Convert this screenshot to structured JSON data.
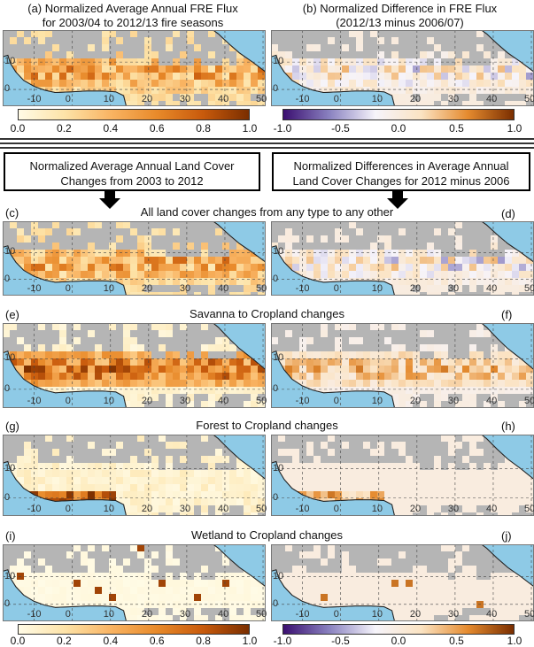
{
  "panels_top": {
    "a_title_line1": "(a) Normalized Average Annual FRE Flux",
    "a_title_line2": "for 2003/04 to 2012/13 fire seasons",
    "b_title_line1": "(b) Normalized Difference in FRE Flux",
    "b_title_line2": "(2012/13 minus 2006/07)"
  },
  "headers": {
    "left_line1": "Normalized Average Annual Land Cover",
    "left_line2": "Changes from 2003 to 2012",
    "right_line1": "Normalized Differences in Average Annual",
    "right_line2": "Land Cover Changes for 2012 minus 2006"
  },
  "sections": {
    "all": "All land cover changes from any type to any other",
    "savanna": "Savanna to Cropland changes",
    "forest": "Forest to Cropland changes",
    "wetland": "Wetland to Cropland changes"
  },
  "labels": {
    "a": "(a)",
    "b": "(b)",
    "c": "(c)",
    "d": "(d)",
    "e": "(e)",
    "f": "(f)",
    "g": "(g)",
    "h": "(h)",
    "i": "(i)",
    "j": "(j)"
  },
  "axis": {
    "lon_ticks": [
      "-10",
      "0",
      "10",
      "20",
      "30",
      "40",
      "50"
    ],
    "lat_ticks": [
      "10",
      "0"
    ]
  },
  "colorbars": {
    "seq_ticks": [
      "0.0",
      "0.2",
      "0.4",
      "0.6",
      "0.8",
      "1.0"
    ],
    "div_ticks": [
      "-1.0",
      "-0.5",
      "0.0",
      "0.5",
      "1.0"
    ],
    "seq_colors": [
      "#fffbe6",
      "#fde3a8",
      "#f9b463",
      "#e88a2a",
      "#c85a0c",
      "#7a2e00"
    ],
    "div_colors": [
      "#3b0f70",
      "#8a82c0",
      "#f6f4fb",
      "#fbe3c2",
      "#e58b2f",
      "#7a2e00"
    ]
  },
  "colors": {
    "ocean": "#8ecae6",
    "nodata": "#b5b5b5",
    "land_white": "#ffffff"
  }
}
